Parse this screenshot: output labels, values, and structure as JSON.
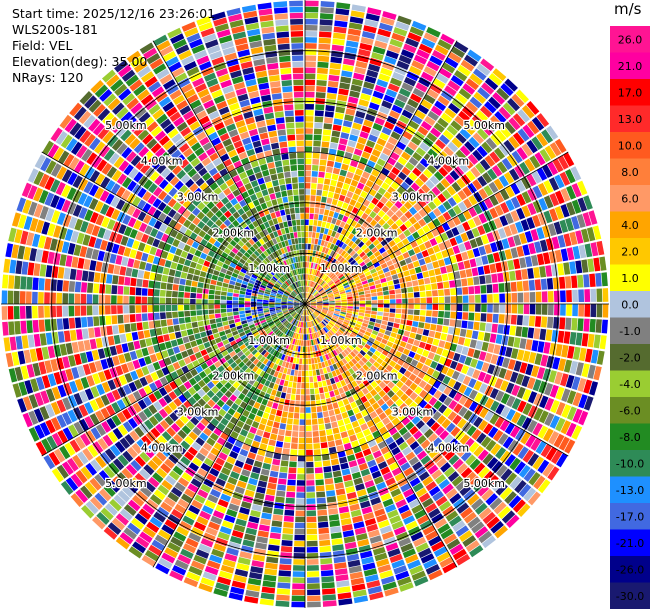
{
  "header": {
    "start_time": "Start time: 2025/12/16 23:26:01",
    "instrument": "WLS200s-181",
    "field": "Field: VEL",
    "elevation": "Elevation(deg): 35.00",
    "nrays": "NRays: 120"
  },
  "chart_data": {
    "type": "polar_ppi",
    "field": "VEL",
    "unit": "m/s",
    "nrays": 120,
    "elevation_deg": 35.0,
    "max_range_km": 6.0,
    "range_rings_km": [
      1,
      2,
      3,
      4,
      5
    ],
    "ring_labels": [
      "1.00km",
      "2.00km",
      "3.00km",
      "4.00km",
      "5.00km"
    ],
    "colorbar": {
      "ticks": [
        "26.0",
        "21.0",
        "17.0",
        "13.0",
        "10.0",
        "8.0",
        "6.0",
        "4.0",
        "2.0",
        "1.0",
        "0.0",
        "-1.0",
        "-2.0",
        "-4.0",
        "-6.0",
        "-8.0",
        "-10.0",
        "-13.0",
        "-17.0",
        "-21.0",
        "-26.0",
        "-30.0"
      ],
      "colors": [
        "#ff1493",
        "#ff00a0",
        "#ff0000",
        "#ff2a2a",
        "#ff5a1f",
        "#ff7f3a",
        "#ff9966",
        "#ffa500",
        "#ffc800",
        "#ffff00",
        "#b0c4de",
        "#808080",
        "#556b2f",
        "#9acd32",
        "#6b8e23",
        "#228b22",
        "#2e8b57",
        "#1e90ff",
        "#4169e1",
        "#0000ff",
        "#00008b",
        "#191970"
      ]
    }
  }
}
